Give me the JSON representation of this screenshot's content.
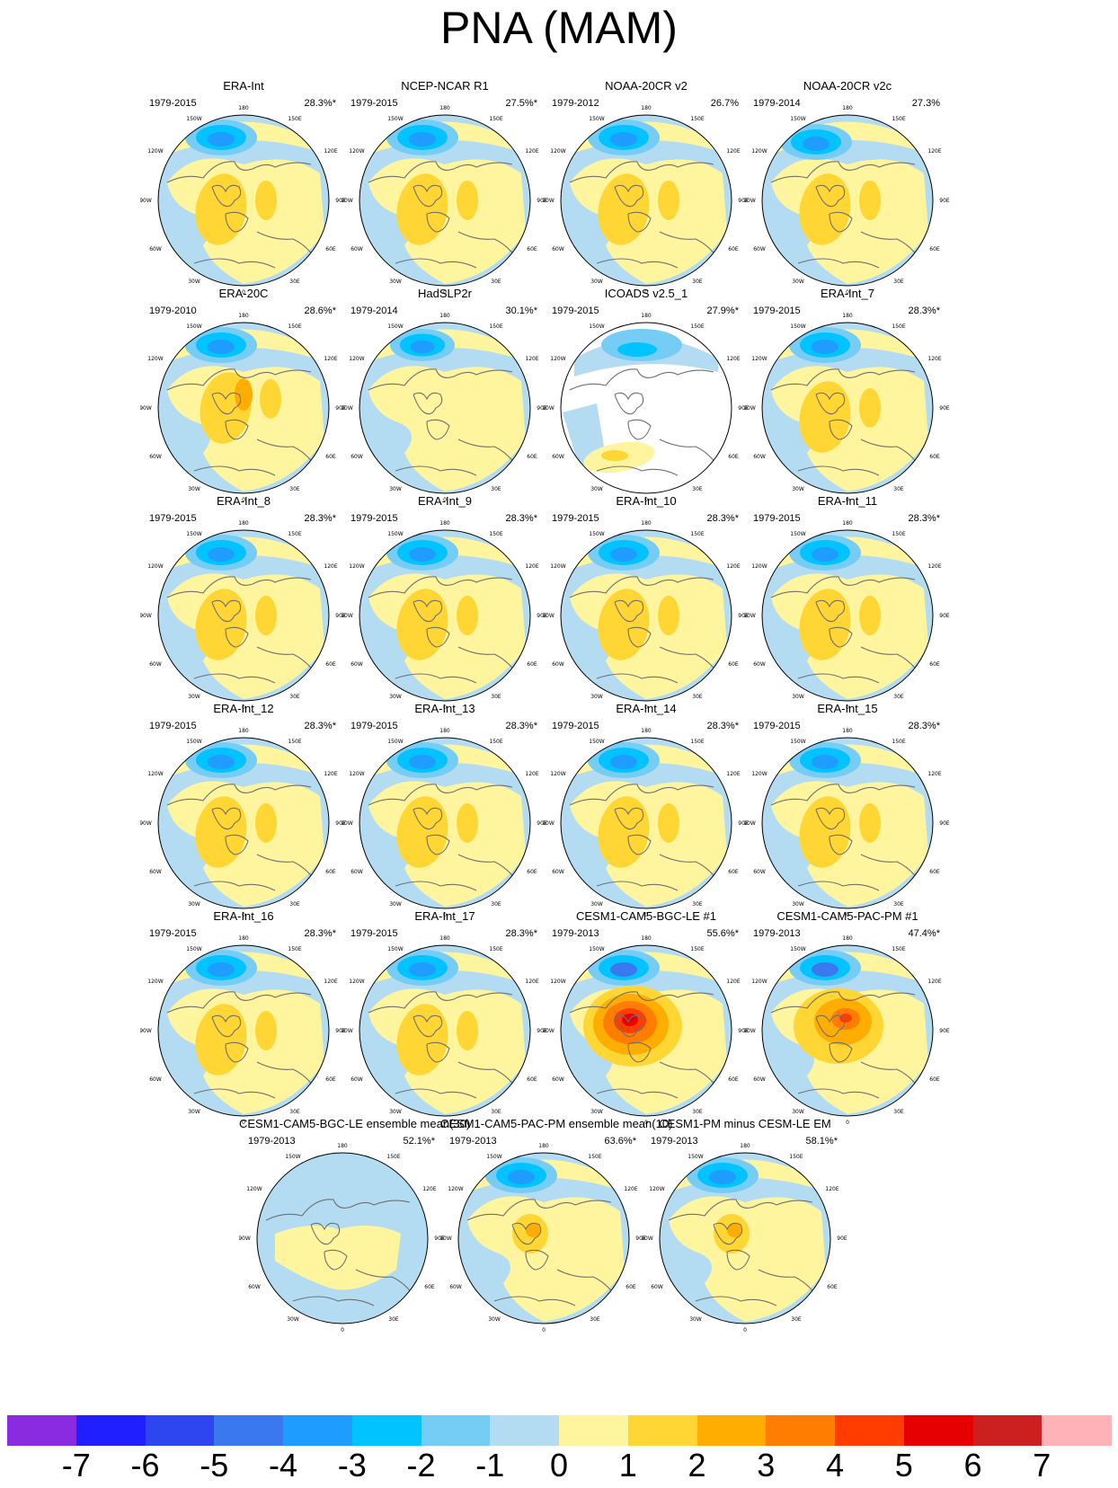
{
  "title": "PNA (MAM)",
  "colors": {
    "ocean_land_neg1": "#b3dcf2",
    "pos1": "#fff59f",
    "coast": "#707070",
    "missing": "#ffffff"
  },
  "tick_labels": {
    "top": "180",
    "upper_left": "150W",
    "upper_right": "150E",
    "left_upper": "120W",
    "right_upper": "120E",
    "left": "90W",
    "right": "90E",
    "left_lower": "60W",
    "right_lower": "60E",
    "lower_left": "30W",
    "lower_right": "30E",
    "bottom": "0"
  },
  "panels": [
    {
      "title": "ERA-Int",
      "years": "1979-2015",
      "pct": "28.3%*",
      "style": "era"
    },
    {
      "title": "NCEP-NCAR R1",
      "years": "1979-2015",
      "pct": "27.5%*",
      "style": "era"
    },
    {
      "title": "NOAA-20CR v2",
      "years": "1979-2012",
      "pct": "26.7%",
      "style": "era"
    },
    {
      "title": "NOAA-20CR v2c",
      "years": "1979-2014",
      "pct": "27.3%",
      "style": "v2c"
    },
    {
      "title": "ERA-20C",
      "years": "1979-2010",
      "pct": "28.6%*",
      "style": "era20c"
    },
    {
      "title": "HadSLP2r",
      "years": "1979-2014",
      "pct": "30.1%*",
      "style": "hadslp"
    },
    {
      "title": "ICOADS v2.5_1",
      "years": "1979-2015",
      "pct": "27.9%*",
      "style": "icoads"
    },
    {
      "title": "ERA-Int_7",
      "years": "1979-2015",
      "pct": "28.3%*",
      "style": "era"
    },
    {
      "title": "ERA-Int_8",
      "years": "1979-2015",
      "pct": "28.3%*",
      "style": "era"
    },
    {
      "title": "ERA-Int_9",
      "years": "1979-2015",
      "pct": "28.3%*",
      "style": "era"
    },
    {
      "title": "ERA-Int_10",
      "years": "1979-2015",
      "pct": "28.3%*",
      "style": "era"
    },
    {
      "title": "ERA-Int_11",
      "years": "1979-2015",
      "pct": "28.3%*",
      "style": "era"
    },
    {
      "title": "ERA-Int_12",
      "years": "1979-2015",
      "pct": "28.3%*",
      "style": "era"
    },
    {
      "title": "ERA-Int_13",
      "years": "1979-2015",
      "pct": "28.3%*",
      "style": "era"
    },
    {
      "title": "ERA-Int_14",
      "years": "1979-2015",
      "pct": "28.3%*",
      "style": "era"
    },
    {
      "title": "ERA-Int_15",
      "years": "1979-2015",
      "pct": "28.3%*",
      "style": "era"
    },
    {
      "title": "ERA-Int_16",
      "years": "1979-2015",
      "pct": "28.3%*",
      "style": "era"
    },
    {
      "title": "ERA-Int_17",
      "years": "1979-2015",
      "pct": "28.3%*",
      "style": "era"
    },
    {
      "title": "CESM1-CAM5-BGC-LE #1",
      "years": "1979-2013",
      "pct": "55.6%*",
      "style": "bgc"
    },
    {
      "title": "CESM1-CAM5-PAC-PM #1",
      "years": "1979-2013",
      "pct": "47.4%*",
      "style": "pac"
    },
    {
      "title": "CESM1-CAM5-BGC-LE ensemble mean(30)",
      "years": "1979-2013",
      "pct": "52.1%*",
      "style": "lemean"
    },
    {
      "title": "CESM1-CAM5-PAC-PM ensemble mean(10)",
      "years": "1979-2013",
      "pct": "63.6%*",
      "style": "pmmean"
    },
    {
      "title": "CESM1-PM minus CESM-LE EM",
      "years": "1979-2013",
      "pct": "58.1%*",
      "style": "diff"
    }
  ],
  "colorbar": {
    "colors": [
      "#8a2be2",
      "#1f1fff",
      "#2e46f0",
      "#3a78f0",
      "#1f9cff",
      "#00c3ff",
      "#75cdf5",
      "#b3dcf2",
      "#fff59f",
      "#ffd633",
      "#ffad00",
      "#ff7d00",
      "#ff3d00",
      "#e60000",
      "#cc1f1f",
      "#ffb3b8"
    ],
    "labels": [
      "-7",
      "-6",
      "-5",
      "-4",
      "-3",
      "-2",
      "-1",
      "0",
      "1",
      "2",
      "3",
      "4",
      "5",
      "6",
      "7"
    ]
  }
}
